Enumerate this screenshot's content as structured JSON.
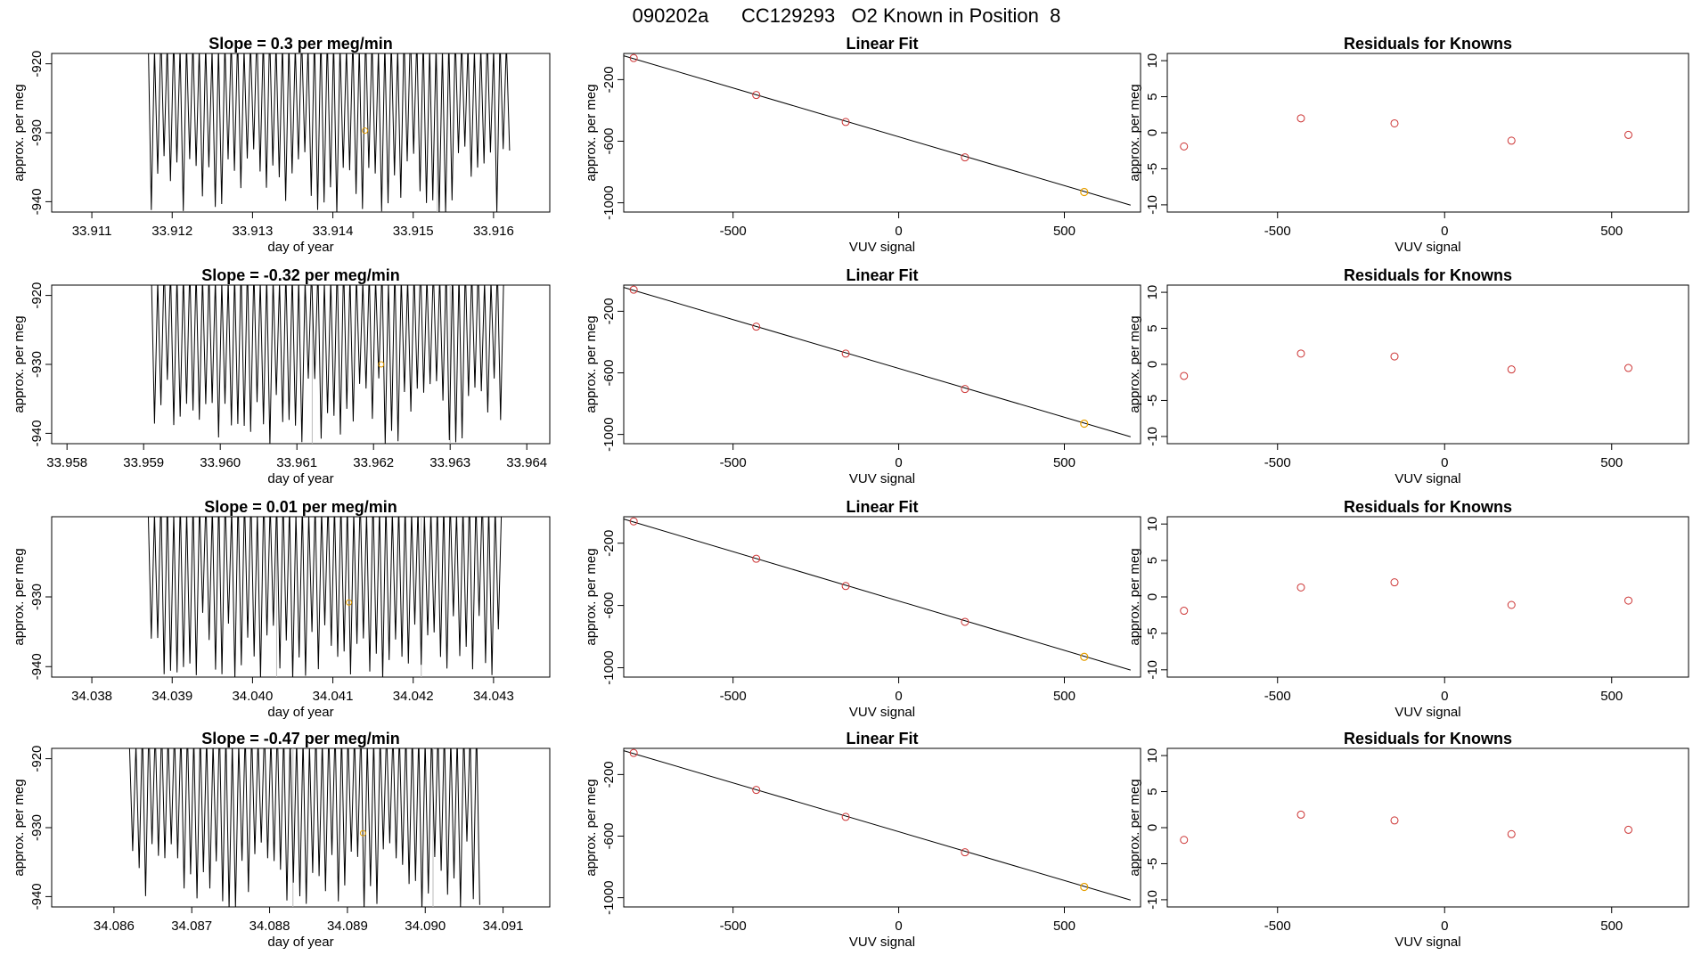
{
  "title": "090202a      CC129293   O2 Known in Position  8",
  "colors": {
    "line": "#000000",
    "known": "#cc3333",
    "sample": "#e69f00",
    "gray": "#bbbbbb"
  },
  "chart_data": [
    {
      "row": 0,
      "panel": "timeseries",
      "type": "line",
      "title": "Slope =  0.3  per meg/min",
      "xlabel": "day of year",
      "ylabel": "approx. per meg",
      "xlim": [
        33.9105,
        33.9167
      ],
      "ylim": [
        -941.5,
        -918.5
      ],
      "xticks": [
        "33.911",
        "33.912",
        "33.913",
        "33.914",
        "33.915",
        "33.916"
      ],
      "yticks": [
        "-920",
        "-930",
        "-940"
      ],
      "trace_start": 33.9117,
      "trace_end": 33.9162,
      "marker_lines": [
        33.9153
      ],
      "sample_point": [
        33.9144,
        -929.7
      ]
    },
    {
      "row": 0,
      "panel": "fit",
      "type": "scatter",
      "title": "Linear Fit",
      "xlabel": "VUV signal",
      "ylabel": "approx. per meg",
      "xlim": [
        -830,
        730
      ],
      "ylim": [
        -1060,
        -30
      ],
      "xticks": [
        "-500",
        "0",
        "500"
      ],
      "yticks": [
        "-200",
        "-600",
        "-1000"
      ],
      "fit_line": [
        [
          -830,
          -45
        ],
        [
          700,
          -1015
        ]
      ],
      "knowns": [
        [
          -800,
          -60
        ],
        [
          -430,
          -300
        ],
        [
          -160,
          -475
        ],
        [
          200,
          -705
        ]
      ],
      "sample": [
        [
          560,
          -930
        ]
      ]
    },
    {
      "row": 0,
      "panel": "residuals",
      "type": "scatter",
      "title": "Residuals for Knowns",
      "xlabel": "VUV signal",
      "ylabel": "approx. per meg",
      "xlim": [
        -830,
        730
      ],
      "ylim": [
        -11,
        11
      ],
      "xticks": [
        "-500",
        "0",
        "500"
      ],
      "yticks": [
        "10",
        "5",
        "0",
        "-5",
        "-10"
      ],
      "points": [
        [
          -780,
          -1.9
        ],
        [
          -430,
          2.0
        ],
        [
          -150,
          1.3
        ],
        [
          200,
          -1.1
        ],
        [
          550,
          -0.3
        ]
      ]
    },
    {
      "row": 1,
      "panel": "timeseries",
      "type": "line",
      "title": "Slope =  -0.32  per meg/min",
      "xlabel": "day of year",
      "ylabel": "approx. per meg",
      "xlim": [
        33.9578,
        33.9643
      ],
      "ylim": [
        -941.5,
        -918.5
      ],
      "xticks": [
        "33.958",
        "33.959",
        "33.960",
        "33.961",
        "33.962",
        "33.963",
        "33.964"
      ],
      "yticks": [
        "-920",
        "-930",
        "-940"
      ],
      "trace_start": 33.9591,
      "trace_end": 33.9637,
      "marker_lines": [
        33.9612,
        33.963
      ],
      "sample_point": [
        33.9621,
        -930.0
      ]
    },
    {
      "row": 1,
      "panel": "fit",
      "type": "scatter",
      "title": "Linear Fit",
      "xlabel": "VUV signal",
      "ylabel": "approx. per meg",
      "xlim": [
        -830,
        730
      ],
      "ylim": [
        -1060,
        -30
      ],
      "xticks": [
        "-500",
        "0",
        "500"
      ],
      "yticks": [
        "-200",
        "-600",
        "-1000"
      ],
      "fit_line": [
        [
          -830,
          -45
        ],
        [
          700,
          -1015
        ]
      ],
      "knowns": [
        [
          -800,
          -60
        ],
        [
          -430,
          -300
        ],
        [
          -160,
          -475
        ],
        [
          200,
          -705
        ]
      ],
      "sample": [
        [
          560,
          -930
        ]
      ]
    },
    {
      "row": 1,
      "panel": "residuals",
      "type": "scatter",
      "title": "Residuals for Knowns",
      "xlabel": "VUV signal",
      "ylabel": "approx. per meg",
      "xlim": [
        -830,
        730
      ],
      "ylim": [
        -11,
        11
      ],
      "xticks": [
        "-500",
        "0",
        "500"
      ],
      "yticks": [
        "10",
        "5",
        "0",
        "-5",
        "-10"
      ],
      "points": [
        [
          -780,
          -1.6
        ],
        [
          -430,
          1.5
        ],
        [
          -150,
          1.1
        ],
        [
          200,
          -0.7
        ],
        [
          550,
          -0.5
        ]
      ]
    },
    {
      "row": 2,
      "panel": "timeseries",
      "type": "line",
      "title": "Slope =  0.01  per meg/min",
      "xlabel": "day of year",
      "ylabel": "approx. per meg",
      "xlim": [
        34.0375,
        34.0437
      ],
      "ylim": [
        -941.5,
        -918.5
      ],
      "xticks": [
        "34.038",
        "34.039",
        "34.040",
        "34.041",
        "34.042",
        "34.043"
      ],
      "yticks": [
        "-930",
        "-940"
      ],
      "trace_start": 34.0387,
      "trace_end": 34.0431,
      "marker_lines": [
        34.0403,
        34.0421
      ],
      "sample_point": [
        34.0412,
        -930.8
      ]
    },
    {
      "row": 2,
      "panel": "fit",
      "type": "scatter",
      "title": "Linear Fit",
      "xlabel": "VUV signal",
      "ylabel": "approx. per meg",
      "xlim": [
        -830,
        730
      ],
      "ylim": [
        -1060,
        -30
      ],
      "xticks": [
        "-500",
        "0",
        "500"
      ],
      "yticks": [
        "-200",
        "-600",
        "-1000"
      ],
      "fit_line": [
        [
          -830,
          -45
        ],
        [
          700,
          -1015
        ]
      ],
      "knowns": [
        [
          -800,
          -60
        ],
        [
          -430,
          -300
        ],
        [
          -160,
          -475
        ],
        [
          200,
          -705
        ]
      ],
      "sample": [
        [
          560,
          -930
        ]
      ]
    },
    {
      "row": 2,
      "panel": "residuals",
      "type": "scatter",
      "title": "Residuals for Knowns",
      "xlabel": "VUV signal",
      "ylabel": "approx. per meg",
      "xlim": [
        -830,
        730
      ],
      "ylim": [
        -11,
        11
      ],
      "xticks": [
        "-500",
        "0",
        "500"
      ],
      "yticks": [
        "10",
        "5",
        "0",
        "-5",
        "-10"
      ],
      "points": [
        [
          -780,
          -1.9
        ],
        [
          -430,
          1.3
        ],
        [
          -150,
          2.0
        ],
        [
          200,
          -1.1
        ],
        [
          550,
          -0.5
        ]
      ]
    },
    {
      "row": 3,
      "panel": "timeseries",
      "type": "line",
      "title": "Slope =  -0.47  per meg/min",
      "xlabel": "day of year",
      "ylabel": "approx. per meg",
      "xlim": [
        34.0852,
        34.0916
      ],
      "ylim": [
        -941.5,
        -918.5
      ],
      "xticks": [
        "34.086",
        "34.087",
        "34.088",
        "34.089",
        "34.090",
        "34.091"
      ],
      "yticks": [
        "-920",
        "-930",
        "-940"
      ],
      "trace_start": 34.0862,
      "trace_end": 34.0907,
      "marker_lines": [
        34.0883,
        34.0901
      ],
      "sample_point": [
        34.0892,
        -930.8
      ]
    },
    {
      "row": 3,
      "panel": "fit",
      "type": "scatter",
      "title": "Linear Fit",
      "xlabel": "VUV signal",
      "ylabel": "approx. per meg",
      "xlim": [
        -830,
        730
      ],
      "ylim": [
        -1060,
        -30
      ],
      "xticks": [
        "-500",
        "0",
        "500"
      ],
      "yticks": [
        "-200",
        "-600",
        "-1000"
      ],
      "fit_line": [
        [
          -830,
          -45
        ],
        [
          700,
          -1015
        ]
      ],
      "knowns": [
        [
          -800,
          -60
        ],
        [
          -430,
          -300
        ],
        [
          -160,
          -475
        ],
        [
          200,
          -705
        ]
      ],
      "sample": [
        [
          560,
          -930
        ]
      ]
    },
    {
      "row": 3,
      "panel": "residuals",
      "type": "scatter",
      "title": "Residuals for Knowns",
      "xlabel": "VUV signal",
      "ylabel": "approx. per meg",
      "xlim": [
        -830,
        730
      ],
      "ylim": [
        -11,
        11
      ],
      "xticks": [
        "-500",
        "0",
        "500"
      ],
      "yticks": [
        "10",
        "5",
        "0",
        "-5",
        "-10"
      ],
      "points": [
        [
          -780,
          -1.7
        ],
        [
          -430,
          1.8
        ],
        [
          -150,
          1.0
        ],
        [
          200,
          -0.9
        ],
        [
          550,
          -0.3
        ]
      ]
    }
  ]
}
